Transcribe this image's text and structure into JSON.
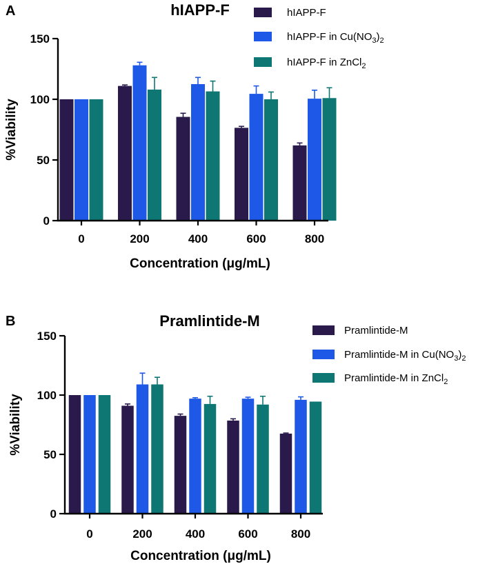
{
  "panels": [
    {
      "letter": "A",
      "colors": [
        "#2a1a4c",
        "#1e58e6",
        "#0f7773"
      ],
      "legend": [
        {
          "base": "hIAPP-F",
          "sub": "",
          "tail": ""
        },
        {
          "base": "hIAPP-F in Cu(NO",
          "sub": "3",
          "tail": ")",
          "sub2": "2"
        },
        {
          "base": "hIAPP-F in ZnCl",
          "sub": "2",
          "tail": ""
        }
      ],
      "chart_data": {
        "type": "bar",
        "title": "hIAPP-F",
        "xlabel": "Concentration (μg/mL)",
        "ylabel": "%Viability",
        "categories": [
          "0",
          "200",
          "400",
          "600",
          "800"
        ],
        "ylim": [
          0,
          150
        ],
        "yticks": [
          0,
          50,
          100,
          150
        ],
        "series": [
          {
            "name": "hIAPP-F",
            "values": [
              100,
              111,
              85.5,
              76.5,
              62
            ],
            "errors": [
              0,
              0.8,
              3,
              1.2,
              2
            ]
          },
          {
            "name": "hIAPP-F in Cu(NO3)2",
            "values": [
              100,
              128,
              112.5,
              104.5,
              100.5
            ],
            "errors": [
              0,
              2.5,
              5.5,
              6.5,
              7
            ]
          },
          {
            "name": "hIAPP-F in ZnCl2",
            "values": [
              100,
              108,
              106.5,
              100,
              101
            ],
            "errors": [
              0,
              10,
              8.5,
              6,
              8.5
            ]
          }
        ]
      }
    },
    {
      "letter": "B",
      "colors": [
        "#2a1a4c",
        "#1e58e6",
        "#0f7773"
      ],
      "legend": [
        {
          "base": "Pramlintide-M",
          "sub": "",
          "tail": ""
        },
        {
          "base": "Pramlintide-M in Cu(NO",
          "sub": "3",
          "tail": ")",
          "sub2": "2"
        },
        {
          "base": "Pramlintide-M in ZnCl",
          "sub": "2",
          "tail": ""
        }
      ],
      "chart_data": {
        "type": "bar",
        "title": "Pramlintide-M",
        "xlabel": "Concentration (μg/mL)",
        "ylabel": "%Viability",
        "categories": [
          "0",
          "200",
          "400",
          "600",
          "800"
        ],
        "ylim": [
          0,
          150
        ],
        "yticks": [
          0,
          50,
          100,
          150
        ],
        "series": [
          {
            "name": "Pramlintide-M",
            "values": [
              100,
              91,
              82.5,
              78.5,
              67.5
            ],
            "errors": [
              0,
              1.5,
              1.5,
              1.5,
              0.5
            ]
          },
          {
            "name": "Pramlintide-M in Cu(NO3)2",
            "values": [
              100,
              109,
              97,
              97,
              96
            ],
            "errors": [
              0,
              9.5,
              0.8,
              1.2,
              2.5
            ]
          },
          {
            "name": "Pramlintide-M in ZnCl2",
            "values": [
              100,
              109,
              92.5,
              92,
              94.5
            ],
            "errors": [
              0,
              6,
              6.5,
              7,
              0
            ]
          }
        ]
      }
    }
  ]
}
